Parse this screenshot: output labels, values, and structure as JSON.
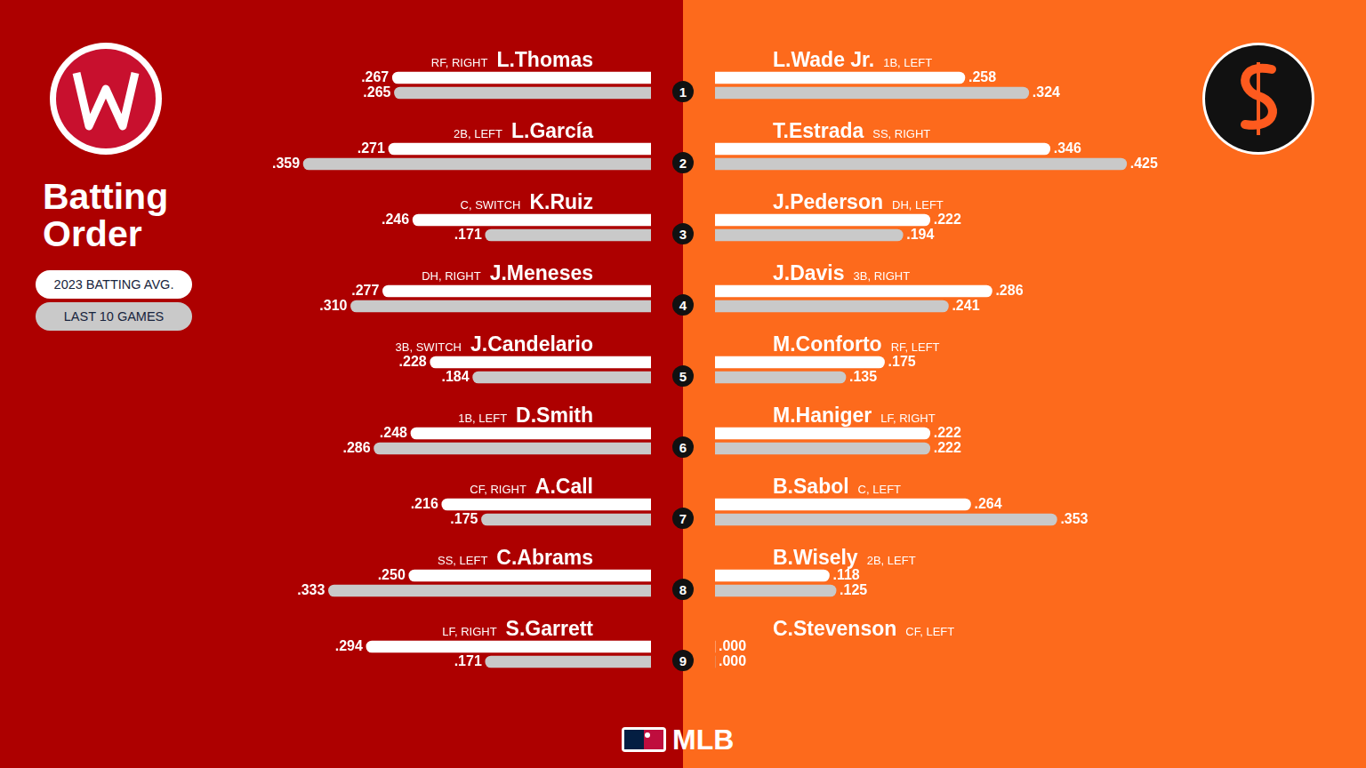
{
  "title": "Batting Order",
  "footer": "MLB",
  "order": [
    1,
    2,
    3,
    4,
    5,
    6,
    7,
    8,
    9
  ],
  "chart_data": [
    {
      "type": "bar",
      "orientation": "horizontal",
      "categories": [
        "L.Thomas",
        "L.García",
        "K.Ruiz",
        "J.Meneses",
        "J.Candelario",
        "D.Smith",
        "A.Call",
        "C.Abrams",
        "S.Garrett"
      ],
      "positions": [
        "RF, RIGHT",
        "2B, LEFT",
        "C, SWITCH",
        "DH, RIGHT",
        "3B, SWITCH",
        "1B, LEFT",
        "CF, RIGHT",
        "SS, LEFT",
        "LF, RIGHT"
      ],
      "xlim": [
        0,
        0.45
      ],
      "grid": false,
      "tick_labels": false,
      "data_labels": true,
      "legend": "left",
      "series": [
        {
          "name": "2023 BATTING AVG.",
          "color": "#ffffff",
          "values": [
            0.267,
            0.271,
            0.246,
            0.277,
            0.228,
            0.248,
            0.216,
            0.25,
            0.294
          ],
          "value_labels": [
            ".267",
            ".271",
            ".246",
            ".277",
            ".228",
            ".248",
            ".216",
            ".250",
            ".294"
          ]
        },
        {
          "name": "LAST 10 GAMES",
          "color": "#c9c9c9",
          "values": [
            0.265,
            0.359,
            0.171,
            0.31,
            0.184,
            0.286,
            0.175,
            0.333,
            0.171
          ],
          "value_labels": [
            ".265",
            ".359",
            ".171",
            ".310",
            ".184",
            ".286",
            ".175",
            ".333",
            ".171"
          ]
        }
      ]
    },
    {
      "type": "bar",
      "orientation": "horizontal",
      "categories": [
        "L.Wade Jr.",
        "T.Estrada",
        "J.Pederson",
        "J.Davis",
        "M.Conforto",
        "M.Haniger",
        "B.Sabol",
        "B.Wisely",
        "C.Stevenson"
      ],
      "positions": [
        "1B, LEFT",
        "SS, RIGHT",
        "DH, LEFT",
        "3B, RIGHT",
        "RF, LEFT",
        "LF, RIGHT",
        "C, LEFT",
        "2B, LEFT",
        "CF, LEFT"
      ],
      "xlim": [
        0,
        0.45
      ],
      "grid": false,
      "tick_labels": false,
      "data_labels": true,
      "legend": "left",
      "series": [
        {
          "name": "2023 BATTING AVG.",
          "color": "#ffffff",
          "values": [
            0.258,
            0.346,
            0.222,
            0.286,
            0.175,
            0.222,
            0.264,
            0.118,
            0.0
          ],
          "value_labels": [
            ".258",
            ".346",
            ".222",
            ".286",
            ".175",
            ".222",
            ".264",
            ".118",
            ".000"
          ]
        },
        {
          "name": "LAST 10 GAMES",
          "color": "#c9c9c9",
          "values": [
            0.324,
            0.425,
            0.194,
            0.241,
            0.135,
            0.222,
            0.353,
            0.125,
            0.0
          ],
          "value_labels": [
            ".324",
            ".425",
            ".194",
            ".241",
            ".135",
            ".222",
            ".353",
            ".125",
            ".000"
          ]
        }
      ]
    }
  ]
}
